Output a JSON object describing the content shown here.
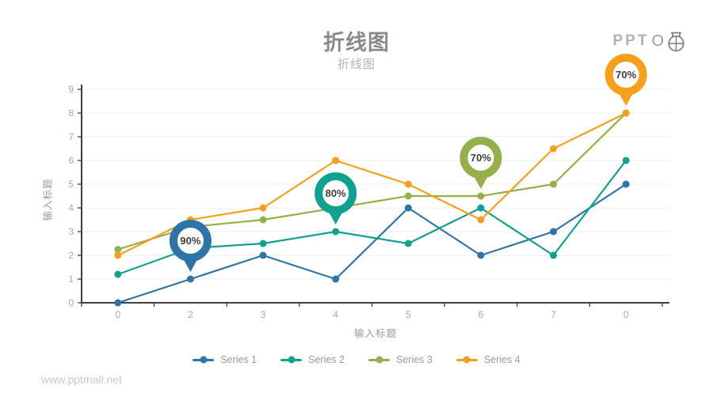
{
  "page": {
    "title": "折线图",
    "subtitle": "折线图",
    "watermark": "www.pptmall.net",
    "logo": {
      "text": "PPT",
      "o": "O"
    }
  },
  "colors": {
    "series1": "#2e74a8",
    "series2": "#12a091",
    "series3": "#93b04a",
    "series4": "#f5a01c",
    "axis": "#3f3f3f",
    "grid": "#ececec",
    "tick_label": "#a8a8a8",
    "pin_text": "#3d3d3d"
  },
  "chart_data": {
    "type": "line",
    "title": "折线图",
    "subtitle": "折线图",
    "x_categories": [
      "0",
      "2",
      "3",
      "4",
      "5",
      "6",
      "7",
      "0"
    ],
    "xlabel": "输入标题",
    "ylabel": "输入标题",
    "ylim": [
      0,
      9
    ],
    "ytick_step": 1,
    "grid": true,
    "legend_position": "bottom",
    "series": [
      {
        "name": "Series 1",
        "color": "#2e74a8",
        "values": [
          0,
          1,
          2,
          1,
          4,
          2,
          3,
          5
        ]
      },
      {
        "name": "Series 2",
        "color": "#12a091",
        "values": [
          1.2,
          2.3,
          2.5,
          3,
          2.5,
          4,
          2,
          6
        ]
      },
      {
        "name": "Series 3",
        "color": "#93b04a",
        "values": [
          2.25,
          3.2,
          3.5,
          4,
          4.5,
          4.5,
          5,
          8
        ]
      },
      {
        "name": "Series 4",
        "color": "#f5a01c",
        "values": [
          2,
          3.5,
          4,
          6,
          5,
          3.5,
          6.5,
          8
        ]
      }
    ],
    "annotations": [
      {
        "label": "90%",
        "series": 0,
        "point": 1
      },
      {
        "label": "80%",
        "series": 1,
        "point": 3
      },
      {
        "label": "70%",
        "series": 2,
        "point": 5
      },
      {
        "label": "70%",
        "series": 3,
        "point": 7
      }
    ]
  }
}
